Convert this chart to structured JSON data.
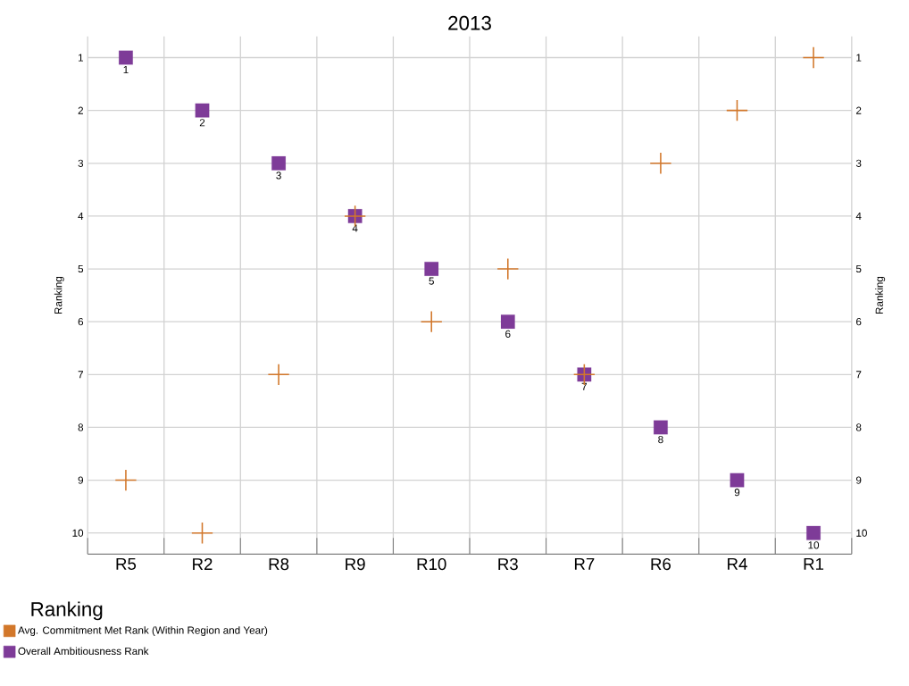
{
  "chart_data": {
    "type": "scatter",
    "title": "2013",
    "ylabel": "Ranking",
    "y2label": "Ranking",
    "legend_title": "Ranking",
    "categories": [
      "R5",
      "R2",
      "R8",
      "R9",
      "R10",
      "R3",
      "R7",
      "R6",
      "R4",
      "R1"
    ],
    "series": [
      {
        "name": "Avg. Commitment Met Rank (Within Region and Year)",
        "color": "#d2772a",
        "marker": "cross",
        "values": [
          9,
          10,
          7,
          4,
          6,
          5,
          7,
          3,
          2,
          1
        ]
      },
      {
        "name": "Overall Ambitiousness Rank",
        "color": "#7e3b98",
        "marker": "square",
        "values": [
          1,
          2,
          3,
          4,
          5,
          6,
          7,
          8,
          9,
          10
        ],
        "value_labels": [
          "1",
          "2",
          "3",
          "4",
          "5",
          "6",
          "7",
          "8",
          "9",
          "10"
        ]
      }
    ],
    "ylim": [
      10.4,
      0.6
    ],
    "yticks": [
      1,
      2,
      3,
      4,
      5,
      6,
      7,
      8,
      9,
      10
    ],
    "y2lim": [
      10.4,
      0.6
    ],
    "y2ticks": [
      1,
      2,
      3,
      4,
      5,
      6,
      7,
      8,
      9,
      10
    ],
    "grid": true,
    "legend": "bottom left"
  }
}
